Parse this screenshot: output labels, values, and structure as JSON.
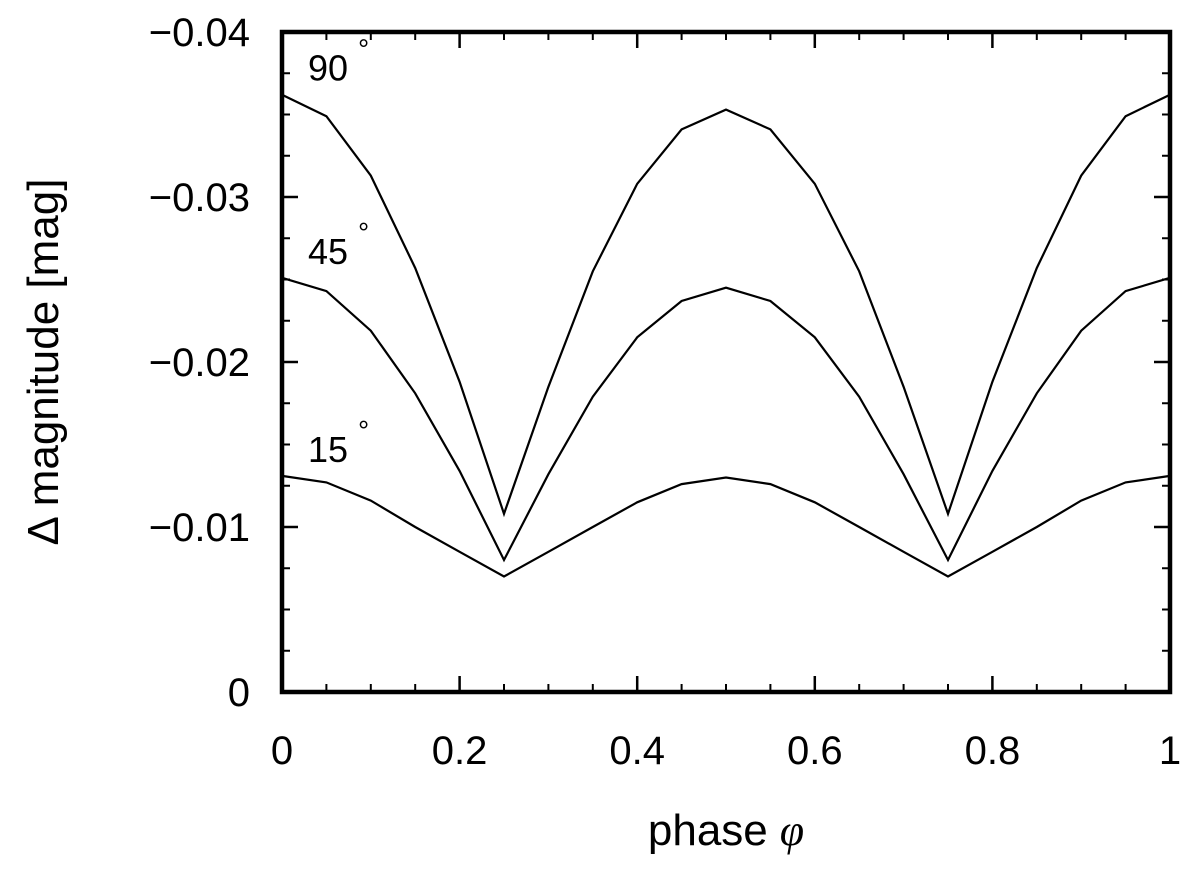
{
  "chart_data": {
    "type": "line",
    "title": "",
    "xlabel": "phase",
    "xlabel_symbol": "φ",
    "ylabel": "Δ magnitude [mag]",
    "xlim": [
      0,
      1
    ],
    "ylim": [
      0,
      -0.04
    ],
    "y_inverted": true,
    "grid": false,
    "x_ticks": [
      0,
      0.2,
      0.4,
      0.6,
      0.8,
      1
    ],
    "x_tick_labels": [
      "0",
      "0.2",
      "0.4",
      "0.6",
      "0.8",
      "1"
    ],
    "y_ticks": [
      0,
      -0.01,
      -0.02,
      -0.03,
      -0.04
    ],
    "y_tick_labels": [
      "0",
      "−0.01",
      "−0.02",
      "−0.03",
      "−0.04"
    ],
    "series": [
      {
        "name": "90°",
        "label_text": "90",
        "label_sup": "°",
        "x": [
          0,
          0.05,
          0.1,
          0.15,
          0.2,
          0.25,
          0.3,
          0.35,
          0.4,
          0.45,
          0.5,
          0.55,
          0.6,
          0.65,
          0.7,
          0.75,
          0.8,
          0.85,
          0.9,
          0.95,
          1
        ],
        "y": [
          -0.0362,
          -0.0349,
          -0.0313,
          -0.0257,
          -0.0188,
          -0.0108,
          -0.0185,
          -0.0255,
          -0.0308,
          -0.0341,
          -0.0353,
          -0.0341,
          -0.0308,
          -0.0255,
          -0.0185,
          -0.0108,
          -0.0188,
          -0.0257,
          -0.0313,
          -0.0349,
          -0.0362
        ]
      },
      {
        "name": "45°",
        "label_text": "45",
        "label_sup": "°",
        "x": [
          0,
          0.05,
          0.1,
          0.15,
          0.2,
          0.25,
          0.3,
          0.35,
          0.4,
          0.45,
          0.5,
          0.55,
          0.6,
          0.65,
          0.7,
          0.75,
          0.8,
          0.85,
          0.9,
          0.95,
          1
        ],
        "y": [
          -0.0251,
          -0.0243,
          -0.0219,
          -0.0181,
          -0.0134,
          -0.008,
          -0.0132,
          -0.0179,
          -0.0215,
          -0.0237,
          -0.0245,
          -0.0237,
          -0.0215,
          -0.0179,
          -0.0132,
          -0.008,
          -0.0134,
          -0.0181,
          -0.0219,
          -0.0243,
          -0.0251
        ]
      },
      {
        "name": "15°",
        "label_text": "15",
        "label_sup": "°",
        "x": [
          0,
          0.05,
          0.1,
          0.15,
          0.2,
          0.25,
          0.3,
          0.35,
          0.4,
          0.45,
          0.5,
          0.55,
          0.6,
          0.65,
          0.7,
          0.75,
          0.8,
          0.85,
          0.9,
          0.95,
          1
        ],
        "y": [
          -0.0131,
          -0.0127,
          -0.0116,
          -0.01,
          -0.0085,
          -0.007,
          -0.0085,
          -0.01,
          -0.0115,
          -0.0126,
          -0.013,
          -0.0126,
          -0.0115,
          -0.01,
          -0.0085,
          -0.007,
          -0.0085,
          -0.01,
          -0.0116,
          -0.0127,
          -0.0131
        ]
      }
    ]
  }
}
